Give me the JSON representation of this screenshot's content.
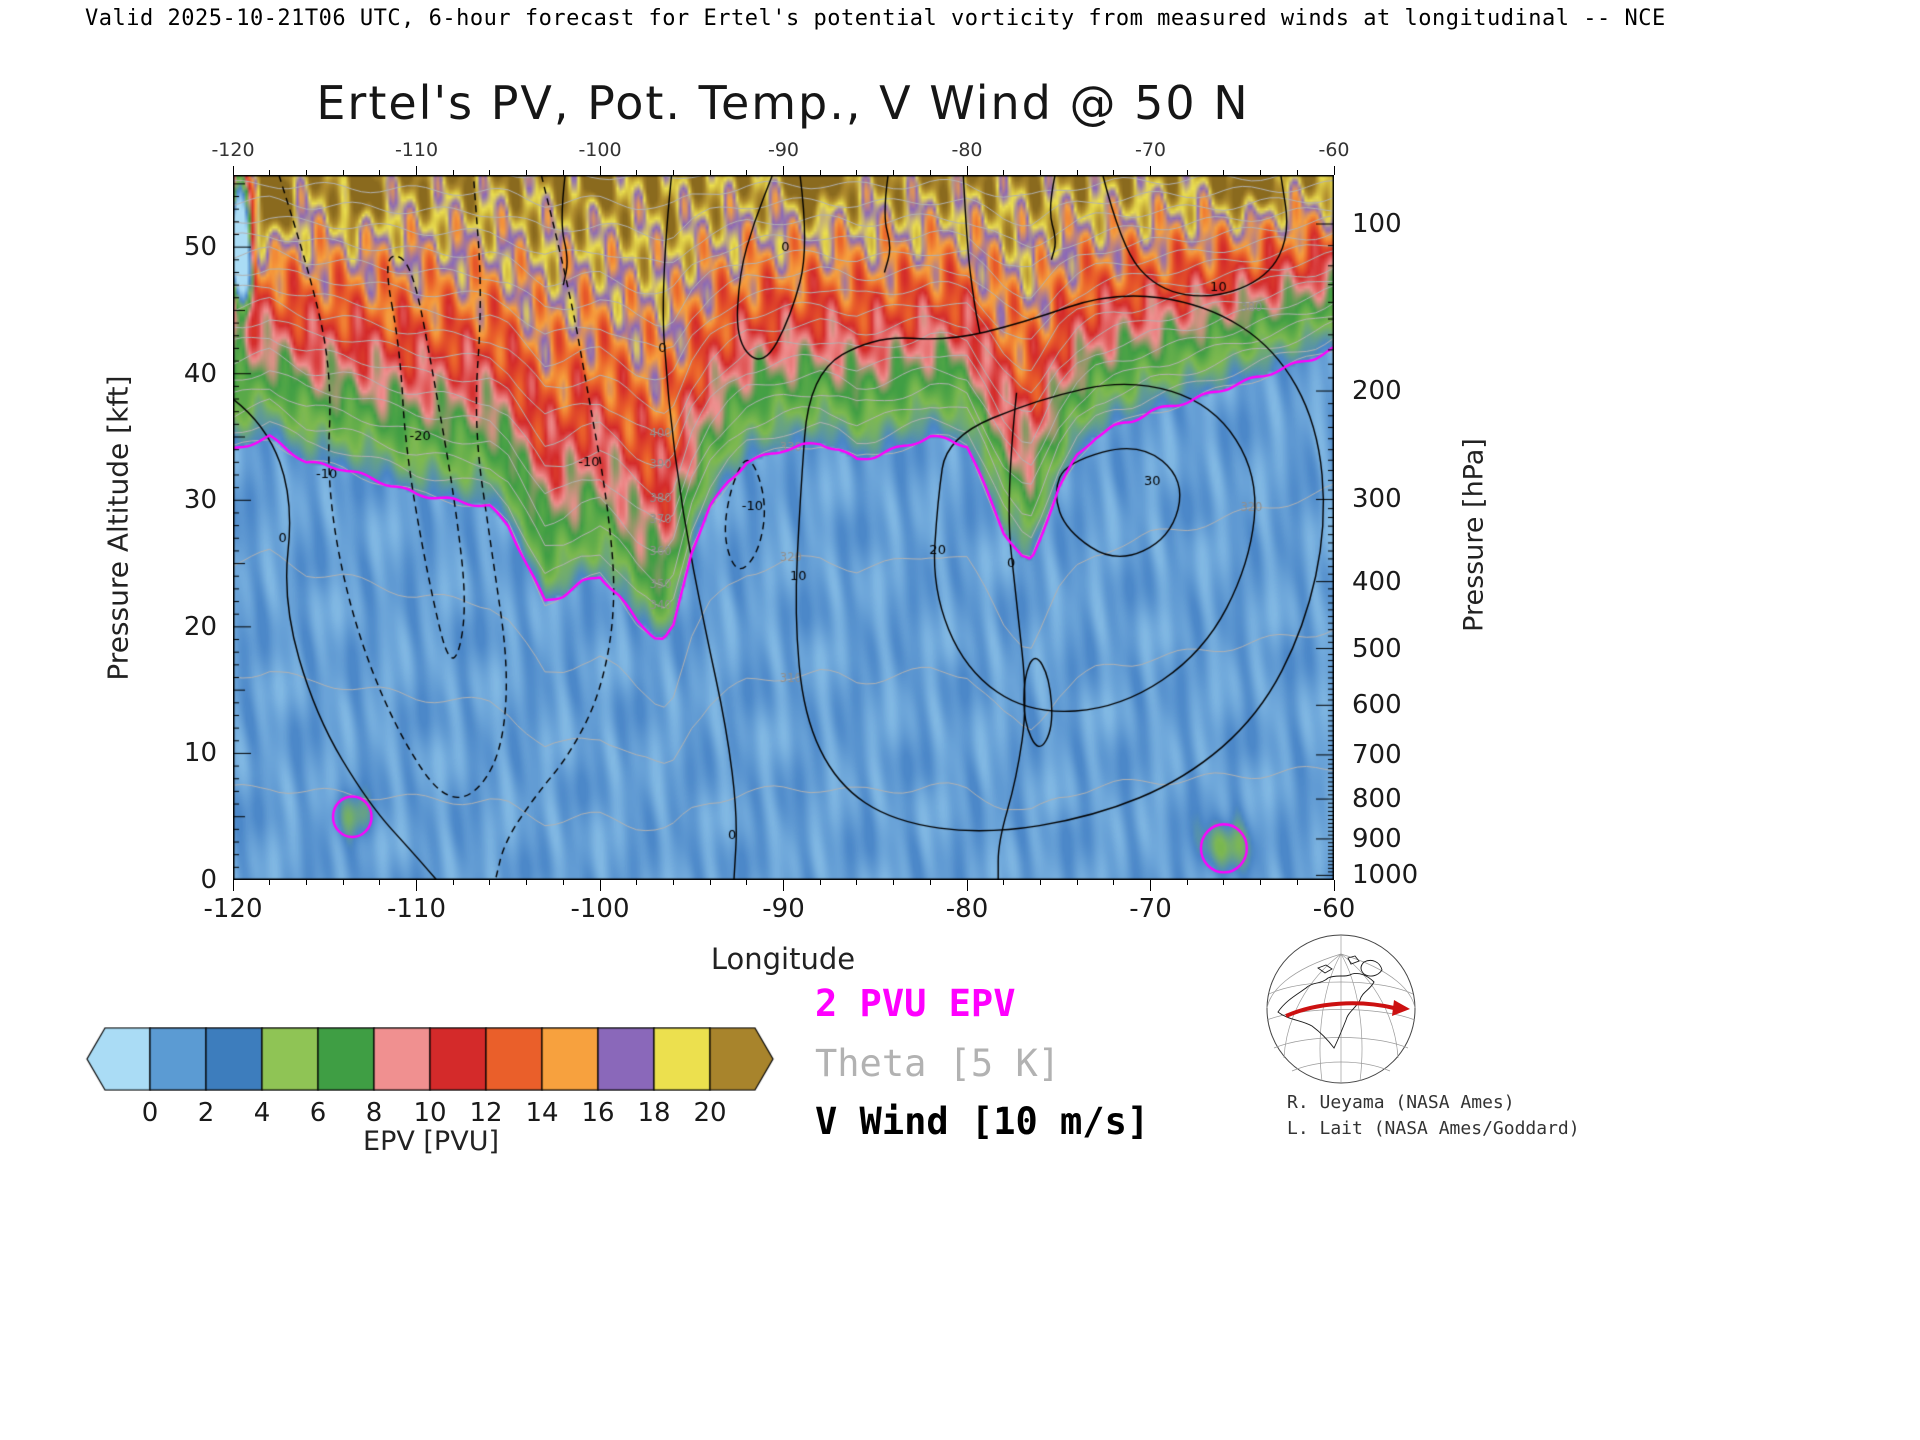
{
  "header": {
    "text": "Valid 2025-10-21T06 UTC, 6-hour forecast for Ertel's potential vorticity from measured winds at longitudinal -- NCE"
  },
  "chart_data": {
    "type": "heatmap",
    "subtype": "longitude-height filled contour cross-section",
    "title": "Ertel's PV, Pot. Temp., V Wind @ 50 N",
    "xlabel": "Longitude",
    "ylabel_left": "Pressure Altitude [kft]",
    "ylabel_right": "Pressure [hPa]",
    "x_range": [
      -120,
      -60
    ],
    "x_ticks": [
      -120,
      -110,
      -100,
      -90,
      -80,
      -70,
      -60
    ],
    "y_left_range": [
      0,
      55.7
    ],
    "y_left_ticks": [
      0,
      10,
      20,
      30,
      40,
      50
    ],
    "y_right_ticks": [
      100,
      200,
      300,
      400,
      500,
      600,
      700,
      800,
      900,
      1000
    ],
    "grid": false,
    "colorbar": {
      "label": "EPV [PVU]",
      "tick_labels": [
        0,
        2,
        4,
        6,
        8,
        10,
        12,
        14,
        16,
        18,
        20
      ],
      "under_color": "#aadcf5",
      "over_color": "#a8842c",
      "segment_colors": [
        "#5b9bd3",
        "#3d7dbd",
        "#8fc455",
        "#3f9e44",
        "#f09090",
        "#d42a2a",
        "#ea5f2a",
        "#f7a13e",
        "#8a68ba",
        "#ece04e"
      ]
    },
    "field_colormap": [
      [
        -2,
        "#aadcf5"
      ],
      [
        0,
        "#82b9e4"
      ],
      [
        2,
        "#4a86c8"
      ],
      [
        4,
        "#7fba50"
      ],
      [
        6,
        "#3f9e44"
      ],
      [
        8,
        "#f09090"
      ],
      [
        10,
        "#d42a2a"
      ],
      [
        12,
        "#ea5f2a"
      ],
      [
        14,
        "#f7a13e"
      ],
      [
        16,
        "#8a68ba"
      ],
      [
        18,
        "#ece04e"
      ],
      [
        20,
        "#b08c2e"
      ],
      [
        22,
        "#8a6a1e"
      ]
    ],
    "tropopause_2pvu": {
      "lon": [
        -120,
        -118,
        -116,
        -114,
        -112,
        -110,
        -108,
        -106,
        -105,
        -104,
        -103,
        -102,
        -101,
        -100,
        -99,
        -98,
        -97,
        -96.5,
        -96,
        -95,
        -94,
        -93,
        -92,
        -91,
        -90,
        -89,
        -88,
        -87,
        -86,
        -85,
        -84,
        -83,
        -82,
        -81,
        -80,
        -79,
        -78,
        -77,
        -76.5,
        -76,
        -75,
        -74,
        -73,
        -72,
        -71,
        -70,
        -69,
        -68,
        -67,
        -66,
        -65,
        -64,
        -63,
        -62,
        -61,
        -60
      ],
      "kft": [
        34,
        35,
        33,
        32.5,
        31.5,
        30.5,
        30,
        29.5,
        28,
        25,
        22,
        22.5,
        23.5,
        24,
        22.5,
        20.5,
        19.2,
        19,
        20,
        26,
        29.5,
        31.5,
        33,
        33.5,
        34,
        34.3,
        34.5,
        34,
        33.2,
        33.5,
        34,
        34.5,
        35,
        34.8,
        34.3,
        31,
        27.5,
        25.5,
        25.2,
        27,
        31,
        33.5,
        35,
        35.8,
        36.3,
        37,
        37.4,
        37.8,
        38.3,
        38.8,
        39.3,
        39.8,
        40.3,
        40.8,
        41.3,
        42
      ]
    },
    "pvu2_closed_contours": [
      {
        "lon": -113.5,
        "kft": 5,
        "rx_deg": 1.05,
        "ry_kft": 1.6
      },
      {
        "lon": -66,
        "kft": 2.5,
        "rx_deg": 1.25,
        "ry_kft": 1.9
      }
    ],
    "epv_features": [
      {
        "lon": -119.6,
        "kft": 51,
        "sx": 0.55,
        "sy": 5,
        "a": -30
      },
      {
        "lon": -117.9,
        "kft": 53.5,
        "sx": 0.8,
        "sy": 2.8,
        "a": 9
      },
      {
        "lon": -113.2,
        "kft": 54.5,
        "sx": 0.7,
        "sy": 2.6,
        "a": 8
      },
      {
        "lon": -100.3,
        "kft": 55.5,
        "sx": 0.7,
        "sy": 2.0,
        "a": 7
      },
      {
        "lon": -88.3,
        "kft": 55.2,
        "sx": 0.9,
        "sy": 2.4,
        "a": 8
      },
      {
        "lon": -64.6,
        "kft": 55.2,
        "sx": 1.3,
        "sy": 2.2,
        "a": 7
      },
      {
        "lon": -113.5,
        "kft": 5,
        "sx": 1.1,
        "sy": 1.7,
        "a": 2.2
      },
      {
        "lon": -66,
        "kft": 2.5,
        "sx": 1.3,
        "sy": 2.0,
        "a": 3.5
      }
    ],
    "theta_contours": {
      "legend_interval_K": 5,
      "drawn_interval_K": 10,
      "min": 300,
      "max": 500,
      "label_groups": [
        {
          "lon": -96.7,
          "values": [
            340,
            350,
            360,
            370,
            380,
            390,
            400
          ]
        },
        {
          "lon": -89.6,
          "values": [
            310,
            320,
            330
          ]
        },
        {
          "lon": -64.5,
          "values": [
            320,
            380
          ]
        }
      ]
    },
    "wind_contours": [
      {
        "level": -10,
        "style": "dashed",
        "closed": false,
        "points": [
          [
            -117.5,
            55.7
          ],
          [
            -115.8,
            48
          ],
          [
            -114.6,
            40
          ],
          [
            -114.9,
            31
          ],
          [
            -113.6,
            21
          ],
          [
            -111.2,
            12
          ],
          [
            -108.2,
            5.5
          ],
          [
            -105.6,
            8.5
          ],
          [
            -104.9,
            16
          ],
          [
            -105.9,
            26
          ],
          [
            -106.9,
            36
          ],
          [
            -106.4,
            46
          ],
          [
            -106.9,
            55.7
          ]
        ]
      },
      {
        "level": -20,
        "style": "dashed",
        "closed": true,
        "points": [
          [
            -111.8,
            49
          ],
          [
            -110.9,
            42
          ],
          [
            -110.6,
            34
          ],
          [
            -109.4,
            24
          ],
          [
            -108.1,
            16
          ],
          [
            -107.2,
            21
          ],
          [
            -107.9,
            30
          ],
          [
            -109.1,
            40
          ],
          [
            -110,
            47
          ],
          [
            -110.8,
            49.5
          ],
          [
            -111.8,
            49
          ]
        ]
      },
      {
        "level": -10,
        "style": "dashed",
        "closed": false,
        "points": [
          [
            -103.2,
            55.7
          ],
          [
            -101.7,
            47
          ],
          [
            -100.6,
            38
          ],
          [
            -99.6,
            30
          ],
          [
            -99.1,
            22
          ],
          [
            -99.9,
            15
          ],
          [
            -101.6,
            10
          ],
          [
            -103.6,
            6.5
          ],
          [
            -105.2,
            3
          ],
          [
            -105.7,
            0
          ]
        ]
      },
      {
        "level": 0,
        "style": "solid",
        "closed": false,
        "points": [
          [
            -96.1,
            55.7
          ],
          [
            -96.7,
            47
          ],
          [
            -96.3,
            38
          ],
          [
            -95.5,
            29
          ],
          [
            -94.3,
            20
          ],
          [
            -93.1,
            12
          ],
          [
            -92.5,
            5
          ],
          [
            -92.7,
            0
          ]
        ]
      },
      {
        "level": 0,
        "style": "solid",
        "closed": false,
        "points": [
          [
            -120,
            38
          ],
          [
            -118.2,
            36
          ],
          [
            -116.7,
            30
          ],
          [
            -117.3,
            22
          ],
          [
            -115.5,
            13
          ],
          [
            -112.6,
            6
          ],
          [
            -110.1,
            2
          ],
          [
            -108.9,
            0
          ]
        ]
      },
      {
        "level": 10,
        "style": "solid",
        "closed": true,
        "points": [
          [
            -88.6,
            40
          ],
          [
            -85,
            43
          ],
          [
            -81,
            42.6
          ],
          [
            -77,
            44
          ],
          [
            -72,
            46.5
          ],
          [
            -67,
            45.5
          ],
          [
            -63.2,
            42
          ],
          [
            -60.9,
            36
          ],
          [
            -60.4,
            28
          ],
          [
            -61.6,
            20
          ],
          [
            -64.1,
            13
          ],
          [
            -68.1,
            8
          ],
          [
            -73.1,
            5
          ],
          [
            -79,
            3.6
          ],
          [
            -84,
            4.6
          ],
          [
            -87.1,
            7.6
          ],
          [
            -88.9,
            13
          ],
          [
            -89.4,
            21
          ],
          [
            -89.1,
            30
          ],
          [
            -88.6,
            40
          ]
        ]
      },
      {
        "level": 20,
        "style": "solid",
        "closed": true,
        "points": [
          [
            -81.1,
            35
          ],
          [
            -76.1,
            38
          ],
          [
            -71.1,
            39.6
          ],
          [
            -66.6,
            37.6
          ],
          [
            -64.1,
            32
          ],
          [
            -64.6,
            25
          ],
          [
            -67.1,
            18
          ],
          [
            -71.6,
            13.6
          ],
          [
            -76.6,
            13.1
          ],
          [
            -80.1,
            16.6
          ],
          [
            -81.9,
            23
          ],
          [
            -81.6,
            30
          ],
          [
            -81.1,
            35
          ]
        ]
      },
      {
        "level": 30,
        "style": "solid",
        "closed": true,
        "points": [
          [
            -74.6,
            33
          ],
          [
            -70.6,
            34.6
          ],
          [
            -68.1,
            31.6
          ],
          [
            -68.9,
            27
          ],
          [
            -71.9,
            25
          ],
          [
            -74.6,
            27.6
          ],
          [
            -75.3,
            30.6
          ],
          [
            -74.6,
            33
          ]
        ]
      },
      {
        "level": 0,
        "style": "solid",
        "closed": false,
        "points": [
          [
            -77.3,
            38.5
          ],
          [
            -77.9,
            30
          ],
          [
            -77.3,
            22
          ],
          [
            -76.7,
            14
          ],
          [
            -77.3,
            8
          ],
          [
            -78.3,
            3
          ],
          [
            -78.3,
            0
          ]
        ]
      },
      {
        "level": 0,
        "style": "solid",
        "closed": true,
        "points": [
          [
            -76.3,
            18
          ],
          [
            -75.5,
            16
          ],
          [
            -75.3,
            12
          ],
          [
            -76.1,
            10
          ],
          [
            -76.9,
            12.5
          ],
          [
            -76.9,
            16
          ],
          [
            -76.3,
            18
          ]
        ]
      },
      {
        "level": 10,
        "style": "solid",
        "closed": false,
        "points": [
          [
            -72.6,
            55.7
          ],
          [
            -71.6,
            50
          ],
          [
            -69.6,
            46.6
          ],
          [
            -66.6,
            45.9
          ],
          [
            -63.6,
            47.6
          ],
          [
            -62.4,
            51
          ],
          [
            -62.9,
            55.7
          ]
        ]
      },
      {
        "level": 0,
        "style": "solid",
        "closed": false,
        "points": [
          [
            -89.1,
            55.7
          ],
          [
            -88.6,
            50
          ],
          [
            -89.6,
            44.5
          ],
          [
            -91.1,
            40.5
          ],
          [
            -92.6,
            42.5
          ],
          [
            -92.4,
            48
          ],
          [
            -91.6,
            52
          ],
          [
            -90.6,
            55.7
          ]
        ]
      },
      {
        "level": -10,
        "style": "dashed",
        "closed": true,
        "points": [
          [
            -91.9,
            34
          ],
          [
            -90.9,
            30
          ],
          [
            -91.3,
            26
          ],
          [
            -92.5,
            24
          ],
          [
            -93.3,
            27
          ],
          [
            -92.9,
            31
          ],
          [
            -91.9,
            34
          ]
        ]
      },
      {
        "level": 0,
        "style": "solid",
        "closed": false,
        "points": [
          [
            -80.2,
            55.7
          ],
          [
            -80,
            50
          ],
          [
            -79.6,
            45.5
          ],
          [
            -79.3,
            43.2
          ]
        ]
      },
      {
        "level": 0,
        "style": "solid",
        "closed": false,
        "points": [
          [
            -101.9,
            55.7
          ],
          [
            -102.2,
            52
          ],
          [
            -101.7,
            49
          ],
          [
            -102,
            47
          ]
        ]
      },
      {
        "level": 0,
        "style": "solid",
        "closed": false,
        "points": [
          [
            -84.3,
            55.7
          ],
          [
            -84.6,
            52.5
          ],
          [
            -84.1,
            50
          ],
          [
            -84.5,
            48
          ]
        ]
      },
      {
        "level": 0,
        "style": "solid",
        "closed": false,
        "points": [
          [
            -75.2,
            55.7
          ],
          [
            -75.6,
            53
          ],
          [
            -75.1,
            50.5
          ],
          [
            -75.4,
            49
          ]
        ]
      }
    ],
    "wind_labels": [
      {
        "text": "-10",
        "lon": -114.9,
        "kft": 32
      },
      {
        "text": "-20",
        "lon": -109.8,
        "kft": 35
      },
      {
        "text": "-10",
        "lon": -100.6,
        "kft": 33
      },
      {
        "text": "0",
        "lon": -96.6,
        "kft": 42
      },
      {
        "text": "0",
        "lon": -117.3,
        "kft": 27
      },
      {
        "text": "-10",
        "lon": -91.7,
        "kft": 29.5
      },
      {
        "text": "10",
        "lon": -89.2,
        "kft": 24
      },
      {
        "text": "20",
        "lon": -81.6,
        "kft": 26
      },
      {
        "text": "30",
        "lon": -69.9,
        "kft": 31.5
      },
      {
        "text": "0",
        "lon": -77.6,
        "kft": 25
      },
      {
        "text": "10",
        "lon": -66.3,
        "kft": 46.8
      },
      {
        "text": "0",
        "lon": -92.8,
        "kft": 3.5
      },
      {
        "text": "0",
        "lon": -89.9,
        "kft": 50
      }
    ]
  },
  "legend": {
    "items": [
      {
        "label": "2 PVU EPV",
        "color": "#ff00ff"
      },
      {
        "label": "Theta [5 K]",
        "color": "#b2b2b2"
      },
      {
        "label": "V Wind [10 m/s]",
        "color": "#000000"
      }
    ]
  },
  "inset_map": {
    "track_color": "#cc1111"
  },
  "credits": [
    "R. Ueyama (NASA Ames)",
    "L. Lait (NASA Ames/Goddard)"
  ]
}
